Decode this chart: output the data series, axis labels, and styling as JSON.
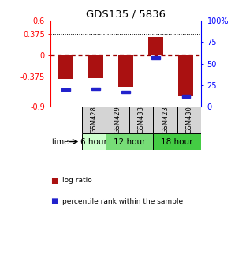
{
  "title": "GDS135 / 5836",
  "samples": [
    "GSM428",
    "GSM429",
    "GSM433",
    "GSM423",
    "GSM430"
  ],
  "log_ratio": [
    -0.42,
    -0.4,
    -0.55,
    0.32,
    -0.72
  ],
  "percentile_rank": [
    20,
    21,
    17,
    57,
    12
  ],
  "ylim_left": [
    -0.9,
    0.6
  ],
  "ylim_right": [
    0,
    100
  ],
  "yticks_left": [
    -0.9,
    -0.375,
    0,
    0.375,
    0.6
  ],
  "yticks_right": [
    0,
    25,
    50,
    75,
    100
  ],
  "ytick_labels_left": [
    "-0.9",
    "-0.375",
    "0",
    "0.375",
    "0.6"
  ],
  "ytick_labels_right": [
    "0",
    "25",
    "50",
    "75",
    "100%"
  ],
  "hline_dashed": 0,
  "hlines_dotted": [
    0.375,
    -0.375
  ],
  "bar_color": "#aa1111",
  "marker_color": "#2222cc",
  "time_groups": [
    {
      "label": "6 hour",
      "samples": [
        "GSM428"
      ],
      "color": "#ccffcc"
    },
    {
      "label": "12 hour",
      "samples": [
        "GSM429",
        "GSM433"
      ],
      "color": "#77dd77"
    },
    {
      "label": "18 hour",
      "samples": [
        "GSM423",
        "GSM430"
      ],
      "color": "#44cc44"
    }
  ],
  "background_color": "#ffffff",
  "plot_bg": "#ffffff",
  "legend_lr_label": "log ratio",
  "legend_pr_label": "percentile rank within the sample"
}
